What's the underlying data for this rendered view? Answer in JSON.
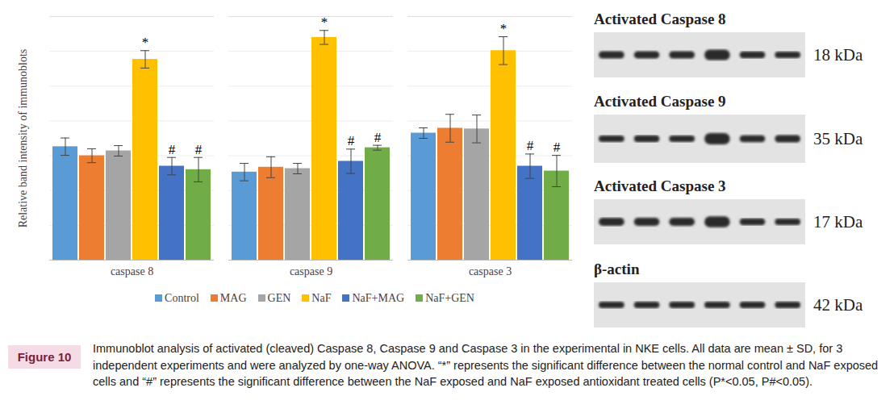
{
  "chart_data": {
    "type": "bar",
    "y_label": "Relative band intensity of immunoblots",
    "categories": [
      "caspase 8",
      "caspase 9",
      "caspase 3"
    ],
    "series": [
      {
        "name": "Control",
        "color": "#5B9BD5",
        "values": [
          3.26,
          2.53,
          3.65
        ],
        "errors": [
          0.25,
          0.25,
          0.15
        ]
      },
      {
        "name": "MAG",
        "color": "#ED7D31",
        "values": [
          3.0,
          2.67,
          3.79
        ],
        "errors": [
          0.2,
          0.3,
          0.4
        ]
      },
      {
        "name": "GEN",
        "color": "#A5A5A5",
        "values": [
          3.14,
          2.63,
          3.77
        ],
        "errors": [
          0.15,
          0.15,
          0.4
        ]
      },
      {
        "name": "NaF",
        "color": "#FFC000",
        "values": [
          5.77,
          6.4,
          6.02
        ],
        "errors": [
          0.25,
          0.2,
          0.4
        ],
        "annotations": [
          "*",
          "*",
          "*"
        ]
      },
      {
        "name": "NaF+MAG",
        "color": "#4472C4",
        "values": [
          2.7,
          2.84,
          2.7
        ],
        "errors": [
          0.25,
          0.35,
          0.35
        ],
        "annotations": [
          "#",
          "#",
          "#"
        ]
      },
      {
        "name": "NaF+GEN",
        "color": "#70AD47",
        "values": [
          2.6,
          3.23,
          2.56
        ],
        "errors": [
          0.35,
          0.07,
          0.45
        ],
        "annotations": [
          "#",
          "#",
          "#"
        ]
      }
    ],
    "ylim": [
      0,
      7
    ],
    "yticks": [
      0,
      1,
      2,
      3,
      4,
      5,
      6,
      7
    ],
    "grid": true,
    "tick_labels": "x",
    "legend": "bottom"
  },
  "blots": [
    {
      "title": "Activated Caspase 8",
      "mw": "18 kDa"
    },
    {
      "title": "Activated Caspase 9",
      "mw": "35 kDa"
    },
    {
      "title": "Activated  Caspase 3",
      "mw": "17 kDa"
    },
    {
      "title": "β-actin",
      "mw": "42 kDa"
    }
  ],
  "caption": {
    "label": "Figure 10",
    "text": "Immunoblot analysis of activated (cleaved) Caspase 8, Caspase 9 and Caspase 3 in the experimental in NKE cells. All data are mean ± SD, for 3 independent experiments and were analyzed by one-way ANOVA. “*” represents the significant difference between the normal control and NaF exposed cells and “#” represents the significant difference between the NaF exposed and NaF exposed antioxidant treated cells (P*<0.05, P#<0.05)."
  }
}
